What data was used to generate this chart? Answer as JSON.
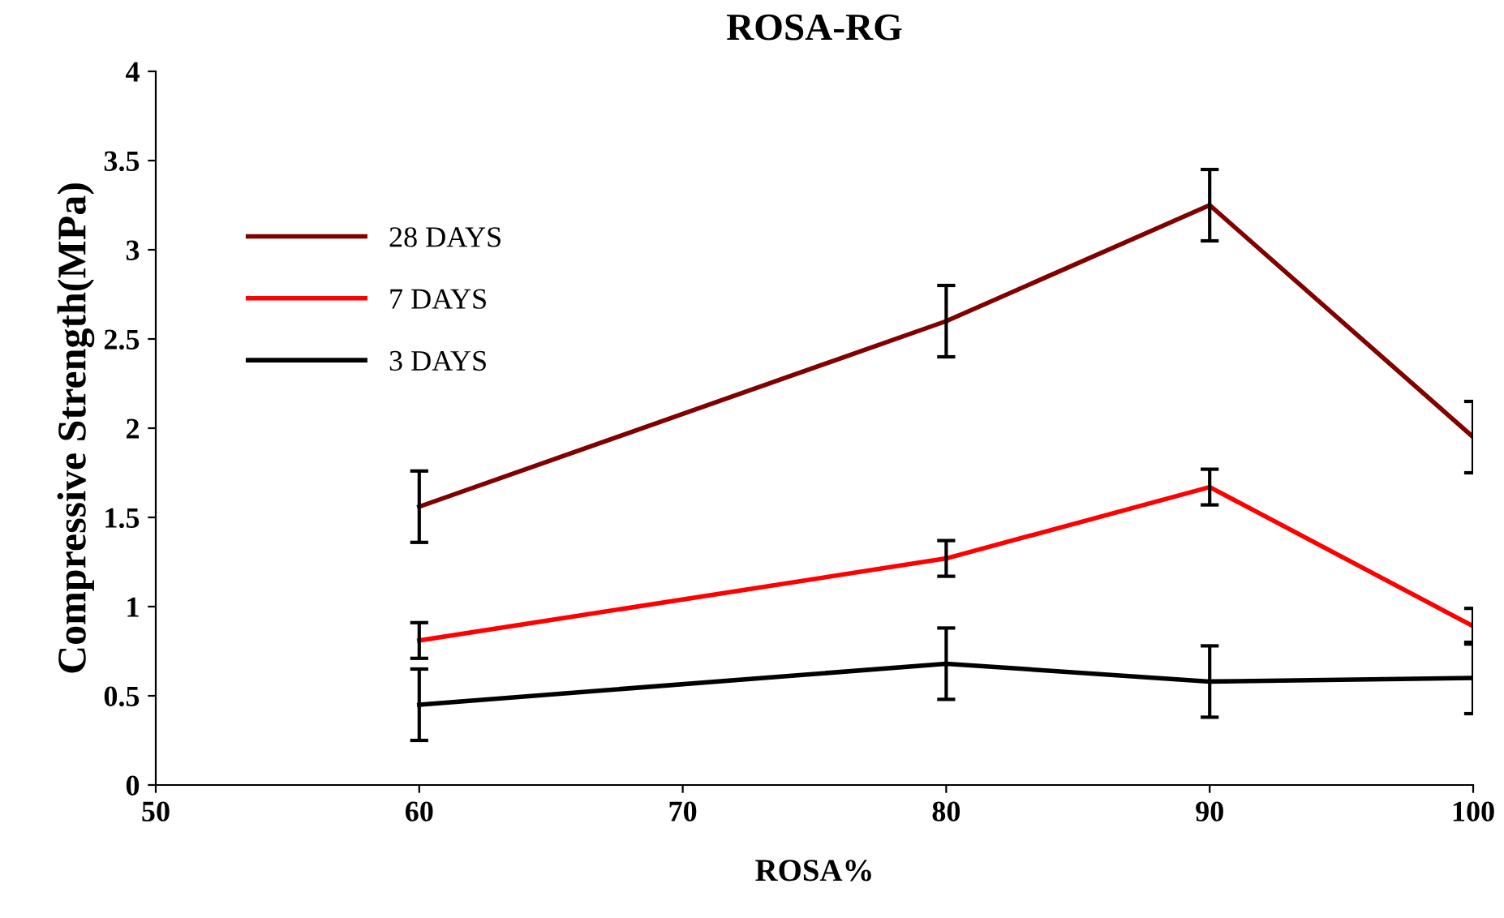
{
  "chart_data": {
    "type": "line",
    "title": "ROSA-RG",
    "xlabel": "ROSA%",
    "ylabel": "Compressive Strength(MPa)",
    "x": [
      60,
      80,
      90,
      100
    ],
    "series": [
      {
        "name": "28 DAYS",
        "color": "#800000",
        "values": [
          1.56,
          2.6,
          3.25,
          1.95
        ],
        "errors": [
          0.2,
          0.2,
          0.2,
          0.2
        ]
      },
      {
        "name": "7 DAYS",
        "color": "#ff0000",
        "values": [
          0.81,
          1.27,
          1.67,
          0.89
        ],
        "errors": [
          0.1,
          0.1,
          0.1,
          0.1
        ]
      },
      {
        "name": "3 DAYS",
        "color": "#000000",
        "values": [
          0.45,
          0.68,
          0.58,
          0.6
        ],
        "errors": [
          0.2,
          0.2,
          0.2,
          0.2
        ]
      }
    ],
    "xlim": [
      50,
      100
    ],
    "xticks": [
      50,
      60,
      70,
      80,
      90,
      100
    ],
    "ylim": [
      0,
      4
    ],
    "yticks": [
      0,
      0.5,
      1,
      1.5,
      2,
      2.5,
      3,
      3.5,
      4
    ],
    "grid": false,
    "legend": "top left",
    "marker": "none",
    "line_style": "solid"
  }
}
